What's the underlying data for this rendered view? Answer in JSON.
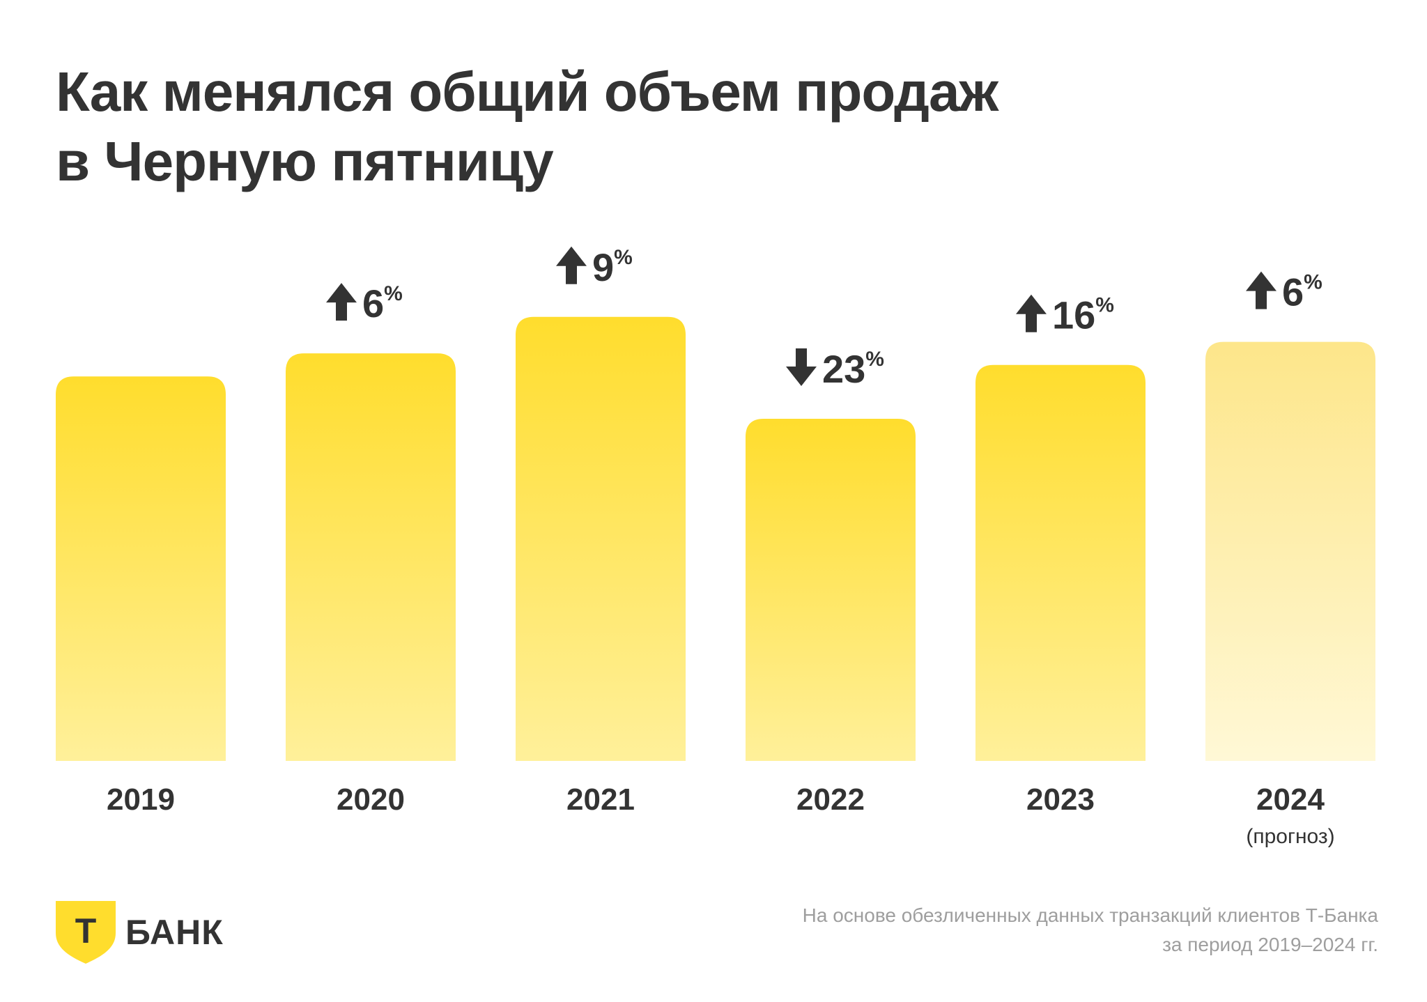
{
  "title_line1": "Как менялся общий объем продаж",
  "title_line2": "в Черную пятницу",
  "chart_data": {
    "type": "bar",
    "categories": [
      "2019",
      "2020",
      "2021",
      "2022",
      "2023",
      "2024"
    ],
    "category_notes": [
      "",
      "",
      "",
      "",
      "",
      "(прогноз)"
    ],
    "values": [
      100,
      106,
      115.5,
      89,
      103,
      109
    ],
    "change_labels": [
      null,
      {
        "direction": "up",
        "value": "6",
        "unit": "%"
      },
      {
        "direction": "up",
        "value": "9",
        "unit": "%"
      },
      {
        "direction": "down",
        "value": "23",
        "unit": "%"
      },
      {
        "direction": "up",
        "value": "16",
        "unit": "%"
      },
      {
        "direction": "up",
        "value": "6",
        "unit": "%"
      }
    ],
    "forecast": [
      false,
      false,
      false,
      false,
      false,
      true
    ],
    "ylim": [
      0,
      116
    ],
    "grid": false,
    "colors": {
      "bar_top": "#ffdd2d",
      "bar_bottom": "#fff09a",
      "forecast_top": "#fde68a",
      "forecast_bottom": "#fff8d6",
      "arrow": "#333333",
      "text": "#333333"
    }
  },
  "logo": {
    "letter": "Т",
    "word": "БАНК",
    "shield_color": "#ffdd2d"
  },
  "footnote_line1": "На основе обезличенных данных транзакций клиентов Т-Банка",
  "footnote_line2": "за период 2019–2024 гг."
}
